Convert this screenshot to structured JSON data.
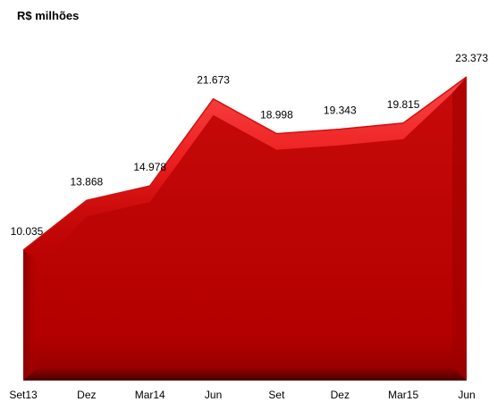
{
  "chart_data": {
    "type": "area",
    "unit_label": "R$ milhões",
    "categories": [
      "Set13",
      "Dez",
      "Mar14",
      "Jun",
      "Set",
      "Dez",
      "Mar15",
      "Jun"
    ],
    "values": [
      10035,
      13868,
      14978,
      21673,
      18998,
      19343,
      19815,
      23373
    ],
    "data_labels": [
      "10.035",
      "13.868",
      "14.978",
      "21.673",
      "18.998",
      "19.343",
      "19.815",
      "23.373"
    ],
    "ylim": [
      0,
      23373
    ],
    "grid": false,
    "legend": "none",
    "colors": {
      "fill": "#b30000",
      "fill_dark": "#7a0000",
      "highlight": "#ff3a3a"
    }
  }
}
